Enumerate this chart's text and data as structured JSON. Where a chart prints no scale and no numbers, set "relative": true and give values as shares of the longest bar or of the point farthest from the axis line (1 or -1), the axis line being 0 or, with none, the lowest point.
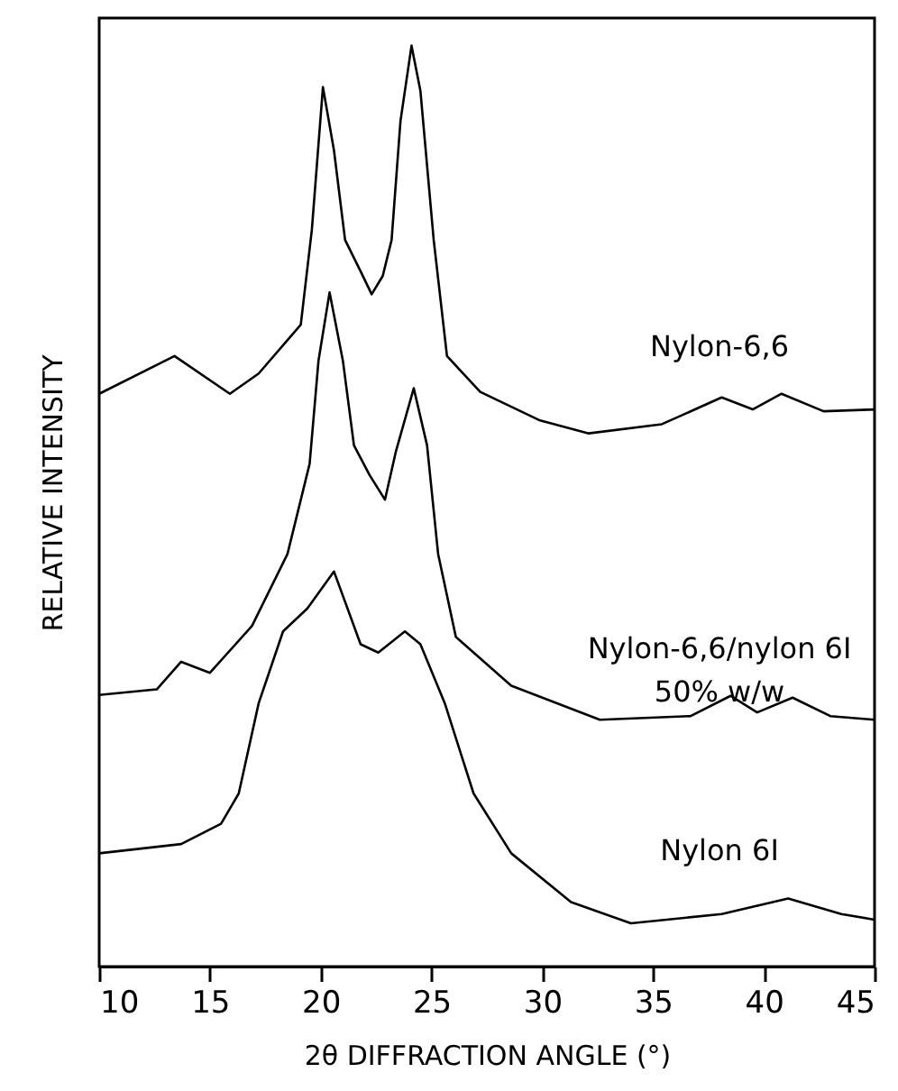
{
  "chart_data": {
    "type": "line",
    "relative": true,
    "xlabel": "2θ DIFFRACTION ANGLE (°)",
    "ylabel": "RELATIVE INTENSITY",
    "xlim": [
      10,
      45
    ],
    "xticks": [
      10,
      15,
      20,
      25,
      30,
      35,
      40,
      45
    ],
    "grid": false,
    "legend": false,
    "marker": "none",
    "line_style": "solid",
    "tick_labels": "x",
    "series": [
      {
        "name": "Nylon-6,6",
        "color": "#000000",
        "x": [
          10,
          13.4,
          15.9,
          17.2,
          19.1,
          19.6,
          20.1,
          20.6,
          21.1,
          21.8,
          22.3,
          22.8,
          23.2,
          23.6,
          24.1,
          24.5,
          25.1,
          25.7,
          27.2,
          29.9,
          32.1,
          35.4,
          38.1,
          39.5,
          40.8,
          42.7,
          45
        ],
        "values": [
          0.622,
          0.663,
          0.622,
          0.644,
          0.697,
          0.8,
          0.955,
          0.886,
          0.789,
          0.755,
          0.73,
          0.75,
          0.789,
          0.918,
          1.0,
          0.951,
          0.789,
          0.663,
          0.624,
          0.593,
          0.579,
          0.589,
          0.618,
          0.605,
          0.622,
          0.603,
          0.605
        ]
      },
      {
        "name": "Nylon-6,6/nylon 6I 50% w/w",
        "color": "#000000",
        "x": [
          10,
          12.6,
          13.7,
          15.0,
          16.9,
          18.5,
          19.5,
          19.9,
          20.4,
          21.0,
          21.5,
          22.2,
          22.9,
          23.4,
          24.2,
          24.8,
          25.3,
          26.1,
          28.6,
          32.6,
          36.7,
          38.5,
          39.7,
          41.3,
          43.0,
          45
        ],
        "values": [
          0.295,
          0.301,
          0.331,
          0.319,
          0.37,
          0.448,
          0.546,
          0.658,
          0.732,
          0.658,
          0.566,
          0.534,
          0.507,
          0.56,
          0.628,
          0.566,
          0.448,
          0.358,
          0.305,
          0.268,
          0.272,
          0.294,
          0.276,
          0.292,
          0.272,
          0.268
        ]
      },
      {
        "name": "Nylon 6I",
        "color": "#000000",
        "x": [
          10,
          13.7,
          15.5,
          16.3,
          17.2,
          18.3,
          19.4,
          20.6,
          21.8,
          22.6,
          23.8,
          24.5,
          25.6,
          26.9,
          28.6,
          31.3,
          34.0,
          38.1,
          41.1,
          43.5,
          45
        ],
        "values": [
          0.123,
          0.133,
          0.155,
          0.188,
          0.286,
          0.364,
          0.389,
          0.429,
          0.35,
          0.341,
          0.364,
          0.35,
          0.286,
          0.188,
          0.123,
          0.07,
          0.047,
          0.057,
          0.074,
          0.057,
          0.051
        ]
      }
    ]
  }
}
